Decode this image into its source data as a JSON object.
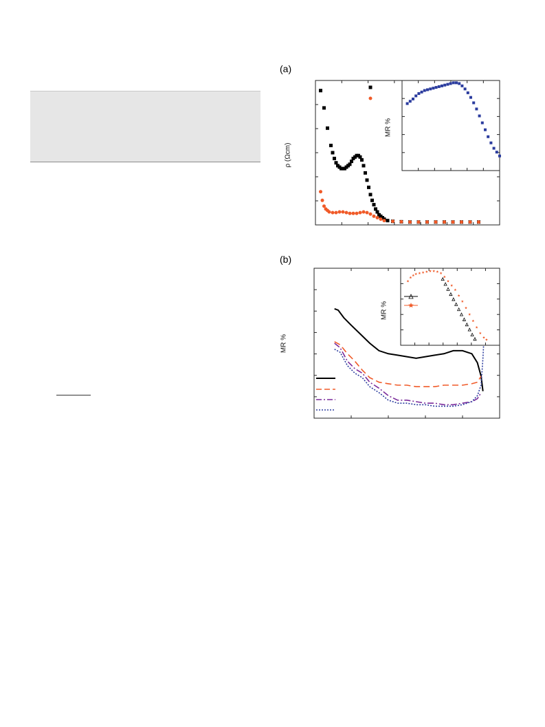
{
  "figure": {
    "panel_a_label": "(a)",
    "panel_b_label": "(b)"
  },
  "chart_data": [
    {
      "id": "a-main",
      "type": "scatter",
      "ylabel": "ρ (Ωcm)",
      "xlabel": "",
      "legend_placement": "top-right",
      "colors": {
        "black": "#000000",
        "orange": "#f05a28"
      },
      "series": [
        {
          "color": "#000000",
          "marker": "square",
          "points": [
            [
              0.03,
              0.93
            ],
            [
              0.05,
              0.81
            ],
            [
              0.07,
              0.67
            ],
            [
              0.09,
              0.55
            ],
            [
              0.1,
              0.5
            ],
            [
              0.11,
              0.46
            ],
            [
              0.12,
              0.43
            ],
            [
              0.13,
              0.41
            ],
            [
              0.14,
              0.4
            ],
            [
              0.15,
              0.39
            ],
            [
              0.16,
              0.39
            ],
            [
              0.17,
              0.39
            ],
            [
              0.18,
              0.4
            ],
            [
              0.19,
              0.41
            ],
            [
              0.2,
              0.42
            ],
            [
              0.21,
              0.44
            ],
            [
              0.22,
              0.46
            ],
            [
              0.23,
              0.47
            ],
            [
              0.24,
              0.48
            ],
            [
              0.25,
              0.48
            ],
            [
              0.26,
              0.47
            ],
            [
              0.27,
              0.45
            ],
            [
              0.28,
              0.41
            ],
            [
              0.29,
              0.36
            ],
            [
              0.3,
              0.31
            ],
            [
              0.31,
              0.26
            ],
            [
              0.32,
              0.21
            ],
            [
              0.33,
              0.17
            ],
            [
              0.34,
              0.14
            ],
            [
              0.35,
              0.11
            ],
            [
              0.36,
              0.09
            ],
            [
              0.37,
              0.07
            ],
            [
              0.38,
              0.06
            ],
            [
              0.39,
              0.05
            ],
            [
              0.4,
              0.04
            ],
            [
              0.42,
              0.03
            ],
            [
              0.45,
              0.025
            ],
            [
              0.5,
              0.022
            ],
            [
              0.55,
              0.02
            ],
            [
              0.6,
              0.02
            ],
            [
              0.65,
              0.02
            ],
            [
              0.7,
              0.02
            ],
            [
              0.75,
              0.02
            ],
            [
              0.8,
              0.02
            ],
            [
              0.85,
              0.02
            ],
            [
              0.9,
              0.02
            ],
            [
              0.95,
              0.02
            ]
          ]
        },
        {
          "color": "#f05a28",
          "marker": "circle",
          "points": [
            [
              0.03,
              0.23
            ],
            [
              0.04,
              0.17
            ],
            [
              0.05,
              0.13
            ],
            [
              0.06,
              0.11
            ],
            [
              0.07,
              0.1
            ],
            [
              0.08,
              0.09
            ],
            [
              0.1,
              0.085
            ],
            [
              0.12,
              0.085
            ],
            [
              0.14,
              0.09
            ],
            [
              0.16,
              0.09
            ],
            [
              0.18,
              0.085
            ],
            [
              0.2,
              0.08
            ],
            [
              0.22,
              0.08
            ],
            [
              0.24,
              0.08
            ],
            [
              0.26,
              0.085
            ],
            [
              0.28,
              0.09
            ],
            [
              0.3,
              0.085
            ],
            [
              0.32,
              0.075
            ],
            [
              0.34,
              0.06
            ],
            [
              0.36,
              0.05
            ],
            [
              0.38,
              0.04
            ],
            [
              0.4,
              0.03
            ],
            [
              0.45,
              0.025
            ],
            [
              0.5,
              0.022
            ],
            [
              0.55,
              0.02
            ],
            [
              0.6,
              0.02
            ],
            [
              0.65,
              0.02
            ],
            [
              0.7,
              0.02
            ],
            [
              0.75,
              0.02
            ],
            [
              0.8,
              0.02
            ],
            [
              0.85,
              0.02
            ],
            [
              0.9,
              0.02
            ],
            [
              0.95,
              0.02
            ]
          ]
        }
      ]
    },
    {
      "id": "a-inset",
      "type": "scatter",
      "ylabel": "MR %",
      "series": [
        {
          "color": "#2b3c9e",
          "marker": "square",
          "points": [
            [
              0.04,
              0.7
            ],
            [
              0.07,
              0.73
            ],
            [
              0.1,
              0.76
            ],
            [
              0.13,
              0.8
            ],
            [
              0.16,
              0.83
            ],
            [
              0.19,
              0.85
            ],
            [
              0.22,
              0.87
            ],
            [
              0.25,
              0.88
            ],
            [
              0.28,
              0.89
            ],
            [
              0.31,
              0.9
            ],
            [
              0.34,
              0.91
            ],
            [
              0.37,
              0.92
            ],
            [
              0.4,
              0.93
            ],
            [
              0.43,
              0.94
            ],
            [
              0.46,
              0.95
            ],
            [
              0.49,
              0.96
            ],
            [
              0.52,
              0.97
            ],
            [
              0.55,
              0.97
            ],
            [
              0.58,
              0.96
            ],
            [
              0.61,
              0.93
            ],
            [
              0.64,
              0.89
            ],
            [
              0.67,
              0.84
            ],
            [
              0.7,
              0.78
            ],
            [
              0.73,
              0.71
            ],
            [
              0.76,
              0.63
            ],
            [
              0.79,
              0.54
            ],
            [
              0.82,
              0.45
            ],
            [
              0.85,
              0.36
            ],
            [
              0.88,
              0.27
            ],
            [
              0.91,
              0.19
            ],
            [
              0.94,
              0.12
            ],
            [
              0.97,
              0.07
            ],
            [
              1.0,
              0.02
            ]
          ]
        }
      ]
    },
    {
      "id": "b-main",
      "type": "line",
      "ylabel": "MR %",
      "legend_placement": "bottom-left",
      "series": [
        {
          "color": "#000000",
          "dash": "solid",
          "points": [
            [
              0.11,
              0.73
            ],
            [
              0.13,
              0.72
            ],
            [
              0.16,
              0.67
            ],
            [
              0.2,
              0.62
            ],
            [
              0.25,
              0.56
            ],
            [
              0.3,
              0.5
            ],
            [
              0.35,
              0.45
            ],
            [
              0.4,
              0.43
            ],
            [
              0.45,
              0.42
            ],
            [
              0.5,
              0.41
            ],
            [
              0.55,
              0.4
            ],
            [
              0.6,
              0.41
            ],
            [
              0.65,
              0.42
            ],
            [
              0.7,
              0.43
            ],
            [
              0.75,
              0.45
            ],
            [
              0.8,
              0.45
            ],
            [
              0.85,
              0.43
            ],
            [
              0.88,
              0.37
            ],
            [
              0.9,
              0.28
            ],
            [
              0.91,
              0.18
            ]
          ]
        },
        {
          "color": "#f05a28",
          "dash": "dashed",
          "points": [
            [
              0.11,
              0.51
            ],
            [
              0.14,
              0.49
            ],
            [
              0.18,
              0.43
            ],
            [
              0.22,
              0.38
            ],
            [
              0.26,
              0.32
            ],
            [
              0.3,
              0.27
            ],
            [
              0.35,
              0.24
            ],
            [
              0.4,
              0.23
            ],
            [
              0.45,
              0.22
            ],
            [
              0.5,
              0.22
            ],
            [
              0.55,
              0.21
            ],
            [
              0.6,
              0.21
            ],
            [
              0.65,
              0.21
            ],
            [
              0.7,
              0.22
            ],
            [
              0.75,
              0.22
            ],
            [
              0.8,
              0.22
            ],
            [
              0.85,
              0.23
            ],
            [
              0.88,
              0.24
            ],
            [
              0.9,
              0.28
            ]
          ]
        },
        {
          "color": "#7a2a9a",
          "dash": "dashdot",
          "points": [
            [
              0.11,
              0.5
            ],
            [
              0.14,
              0.47
            ],
            [
              0.18,
              0.38
            ],
            [
              0.22,
              0.33
            ],
            [
              0.26,
              0.3
            ],
            [
              0.3,
              0.24
            ],
            [
              0.35,
              0.2
            ],
            [
              0.4,
              0.15
            ],
            [
              0.45,
              0.12
            ],
            [
              0.5,
              0.12
            ],
            [
              0.55,
              0.11
            ],
            [
              0.6,
              0.1
            ],
            [
              0.65,
              0.1
            ],
            [
              0.7,
              0.09
            ],
            [
              0.75,
              0.09
            ],
            [
              0.8,
              0.1
            ],
            [
              0.85,
              0.11
            ],
            [
              0.88,
              0.13
            ],
            [
              0.9,
              0.17
            ]
          ]
        },
        {
          "color": "#2b3c9e",
          "dash": "dotted",
          "points": [
            [
              0.11,
              0.46
            ],
            [
              0.14,
              0.44
            ],
            [
              0.18,
              0.35
            ],
            [
              0.22,
              0.3
            ],
            [
              0.26,
              0.27
            ],
            [
              0.3,
              0.21
            ],
            [
              0.35,
              0.17
            ],
            [
              0.4,
              0.12
            ],
            [
              0.45,
              0.1
            ],
            [
              0.5,
              0.1
            ],
            [
              0.55,
              0.09
            ],
            [
              0.6,
              0.09
            ],
            [
              0.65,
              0.08
            ],
            [
              0.7,
              0.08
            ],
            [
              0.75,
              0.08
            ],
            [
              0.8,
              0.09
            ],
            [
              0.85,
              0.11
            ],
            [
              0.88,
              0.15
            ],
            [
              0.9,
              0.22
            ],
            [
              0.91,
              0.4
            ],
            [
              0.92,
              0.65
            ],
            [
              0.925,
              0.88
            ]
          ]
        }
      ]
    },
    {
      "id": "b-inset",
      "type": "scatter",
      "ylabel": "MR %",
      "legend_placement": "left",
      "series": [
        {
          "color": "#000000",
          "marker": "triangle",
          "points": [
            [
              0.44,
              0.87
            ],
            [
              0.47,
              0.8
            ],
            [
              0.5,
              0.73
            ],
            [
              0.53,
              0.66
            ],
            [
              0.56,
              0.59
            ],
            [
              0.59,
              0.52
            ],
            [
              0.62,
              0.45
            ],
            [
              0.65,
              0.38
            ],
            [
              0.68,
              0.31
            ],
            [
              0.71,
              0.24
            ],
            [
              0.74,
              0.17
            ],
            [
              0.77,
              0.1
            ],
            [
              0.8,
              0.04
            ]
          ]
        },
        {
          "color": "#f05a28",
          "marker": "star",
          "points": [
            [
              0.05,
              0.84
            ],
            [
              0.08,
              0.89
            ],
            [
              0.11,
              0.92
            ],
            [
              0.14,
              0.94
            ],
            [
              0.18,
              0.95
            ],
            [
              0.22,
              0.96
            ],
            [
              0.26,
              0.97
            ],
            [
              0.3,
              0.98
            ],
            [
              0.34,
              0.98
            ],
            [
              0.38,
              0.97
            ],
            [
              0.42,
              0.95
            ],
            [
              0.46,
              0.9
            ],
            [
              0.5,
              0.84
            ],
            [
              0.54,
              0.78
            ],
            [
              0.58,
              0.72
            ],
            [
              0.62,
              0.64
            ],
            [
              0.66,
              0.56
            ],
            [
              0.7,
              0.47
            ],
            [
              0.74,
              0.38
            ],
            [
              0.78,
              0.29
            ],
            [
              0.82,
              0.2
            ],
            [
              0.86,
              0.12
            ],
            [
              0.9,
              0.06
            ],
            [
              0.93,
              0.03
            ]
          ]
        }
      ]
    }
  ]
}
